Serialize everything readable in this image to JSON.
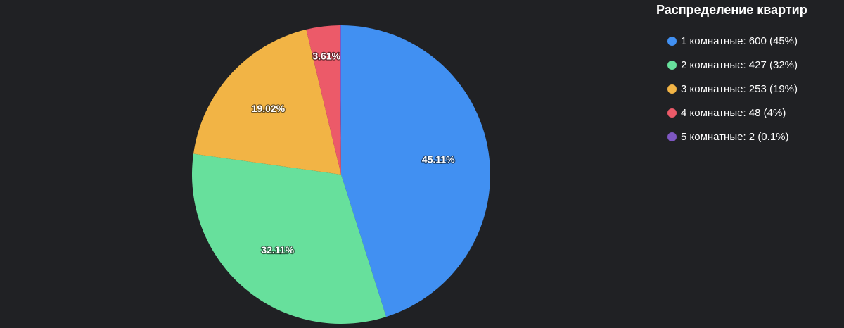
{
  "chart_data": {
    "type": "pie",
    "title": "",
    "categories": [
      "1 комнатные",
      "2 комнатные",
      "3 комнатные",
      "4 комнатные",
      "5 комнатные"
    ],
    "values": [
      600,
      427,
      253,
      48,
      2
    ],
    "colors": [
      "#4190f2",
      "#67e09c",
      "#f2b445",
      "#ec5a69",
      "#7e57c2"
    ],
    "slice_labels": [
      "45.11%",
      "32.11%",
      "19.02%",
      "3.61%",
      ""
    ],
    "legend_position": "top-right"
  },
  "legend": {
    "title": "Распределение квартир",
    "items": [
      {
        "text": "1 комнатные: 600 (45%)",
        "color": "#4190f2"
      },
      {
        "text": "2 комнатные: 427 (32%)",
        "color": "#67e09c"
      },
      {
        "text": "3 комнатные: 253 (19%)",
        "color": "#f2b445"
      },
      {
        "text": "4 комнатные: 48 (4%)",
        "color": "#ec5a69"
      },
      {
        "text": "5 комнатные: 2 (0.1%)",
        "color": "#7e57c2"
      }
    ]
  }
}
